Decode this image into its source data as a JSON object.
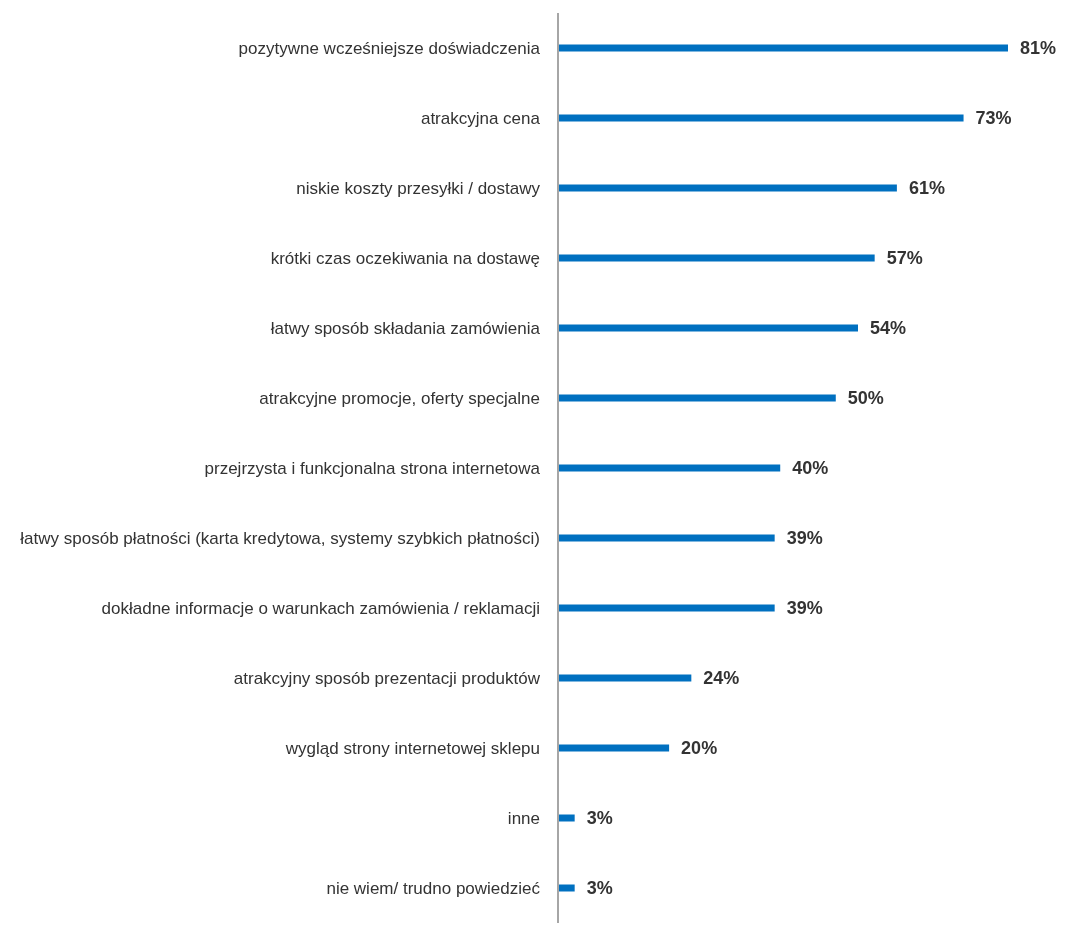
{
  "chart_data": {
    "type": "bar",
    "orientation": "horizontal",
    "categories": [
      "pozytywne wcześniejsze doświadczenia",
      "atrakcyjna cena",
      "niskie koszty przesyłki / dostawy",
      "krótki czas oczekiwania na dostawę",
      "łatwy sposób składania zamówienia",
      "atrakcyjne promocje, oferty specjalne",
      "przejrzysta i funkcjonalna strona internetowa",
      "łatwy sposób płatności (karta kredytowa, systemy szybkich płatności)",
      "dokładne informacje o warunkach zamówienia / reklamacji",
      "atrakcyjny sposób prezentacji produktów",
      "wygląd strony internetowej sklepu",
      "inne",
      "nie wiem/ trudno powiedzieć"
    ],
    "values": [
      81,
      73,
      61,
      57,
      54,
      50,
      40,
      39,
      39,
      24,
      20,
      3,
      3
    ],
    "value_labels": [
      "81%",
      "73%",
      "61%",
      "57%",
      "54%",
      "50%",
      "40%",
      "39%",
      "39%",
      "24%",
      "20%",
      "3%",
      "3%"
    ],
    "color": "#0070c0",
    "grid": false,
    "legend": false
  }
}
